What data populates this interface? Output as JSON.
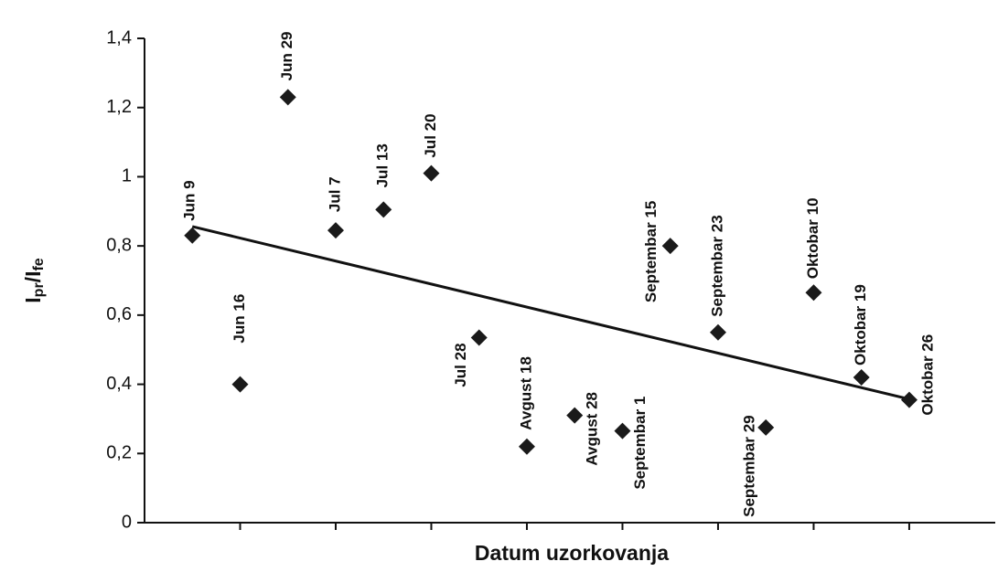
{
  "chart_data": {
    "type": "scatter",
    "x_label": "Datum uzorkovanja",
    "y_label": [
      "I",
      "pr",
      "/I",
      "fe"
    ],
    "x": [
      1,
      2,
      3,
      4,
      5,
      6,
      7,
      8,
      9,
      10,
      11,
      12,
      13,
      14,
      15,
      16
    ],
    "point_labels": [
      "Jun 9",
      "Jun 16",
      "Jun 29",
      "Jul 7",
      "Jul 13",
      "Jul 20",
      "Jul 28",
      "Avgust 18",
      "Avgust 28",
      "Septembar 1",
      "Septembar 15",
      "Septembar 23",
      "Septembar 29",
      "Oktobar 10",
      "Oktobar 19",
      "Oktobar 26"
    ],
    "values": [
      0.83,
      0.4,
      1.23,
      0.845,
      0.905,
      1.01,
      0.535,
      0.22,
      0.31,
      0.265,
      0.8,
      0.55,
      0.275,
      0.665,
      0.42,
      0.355
    ],
    "color": "#1a1a1a",
    "trendline": {
      "x": [
        1,
        16
      ],
      "values": [
        0.856,
        0.357
      ],
      "color": "#111111"
    },
    "xlim": [
      0,
      17.8
    ],
    "xticks": [
      2,
      4,
      6,
      8,
      10,
      12,
      14,
      16
    ],
    "ylim": [
      0,
      1.4
    ],
    "yticks": [
      0,
      {
        "value": 0.2,
        "label": "0,2"
      },
      {
        "value": 0.4,
        "label": "0,4"
      },
      {
        "value": 0.6,
        "label": "0,6"
      },
      {
        "value": 0.8,
        "label": "0,8"
      },
      1,
      {
        "value": 1.2,
        "label": "1,2"
      },
      {
        "value": 1.4,
        "label": "1,4"
      }
    ],
    "grid": false
  }
}
